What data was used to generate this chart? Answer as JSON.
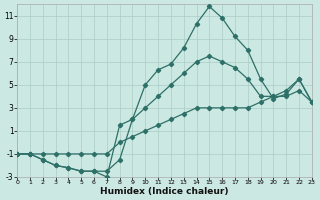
{
  "xlabel": "Humidex (Indice chaleur)",
  "bg_color": "#cce8e2",
  "grid_color": "#aaccc6",
  "line_color": "#2d7068",
  "xlim": [
    0,
    23
  ],
  "ylim": [
    -3,
    12
  ],
  "xtick_vals": [
    0,
    1,
    2,
    3,
    4,
    5,
    6,
    7,
    8,
    9,
    10,
    11,
    12,
    13,
    14,
    15,
    16,
    17,
    18,
    19,
    20,
    21,
    22,
    23
  ],
  "ytick_vals": [
    -3,
    -1,
    1,
    3,
    5,
    7,
    9,
    11
  ],
  "series": [
    {
      "x": [
        0,
        1,
        2,
        3,
        4,
        5,
        6,
        7,
        8,
        9,
        10,
        11,
        12,
        13,
        14,
        15,
        16,
        17,
        18,
        19,
        20,
        21,
        22,
        23
      ],
      "y": [
        -1,
        -1,
        -1.5,
        -2,
        -2.2,
        -2.5,
        -2.5,
        -2.5,
        -1.5,
        2.0,
        5.0,
        6.3,
        6.8,
        8.2,
        10.3,
        11.8,
        10.8,
        9.2,
        8.0,
        5.5,
        3.8,
        4.2,
        5.5,
        3.5
      ]
    },
    {
      "x": [
        0,
        1,
        2,
        3,
        4,
        5,
        6,
        7,
        8,
        9,
        10,
        11,
        12,
        13,
        14,
        15,
        16,
        17,
        18,
        19,
        20,
        21,
        22,
        23
      ],
      "y": [
        -1,
        -1,
        -1.5,
        -2,
        -2.2,
        -2.5,
        -2.5,
        -3.0,
        1.5,
        2.0,
        3.0,
        4.0,
        5.0,
        6.0,
        7.0,
        7.5,
        7.0,
        6.5,
        5.5,
        4.0,
        4.0,
        4.5,
        5.5,
        3.5
      ]
    },
    {
      "x": [
        0,
        1,
        2,
        3,
        4,
        5,
        6,
        7,
        8,
        9,
        10,
        11,
        12,
        13,
        14,
        15,
        16,
        17,
        18,
        19,
        20,
        21,
        22,
        23
      ],
      "y": [
        -1,
        -1,
        -1,
        -1,
        -1,
        -1,
        -1,
        -1,
        0.0,
        0.5,
        1.0,
        1.5,
        2.0,
        2.5,
        3.0,
        3.0,
        3.0,
        3.0,
        3.0,
        3.5,
        4.0,
        4.0,
        4.5,
        3.5
      ]
    }
  ]
}
